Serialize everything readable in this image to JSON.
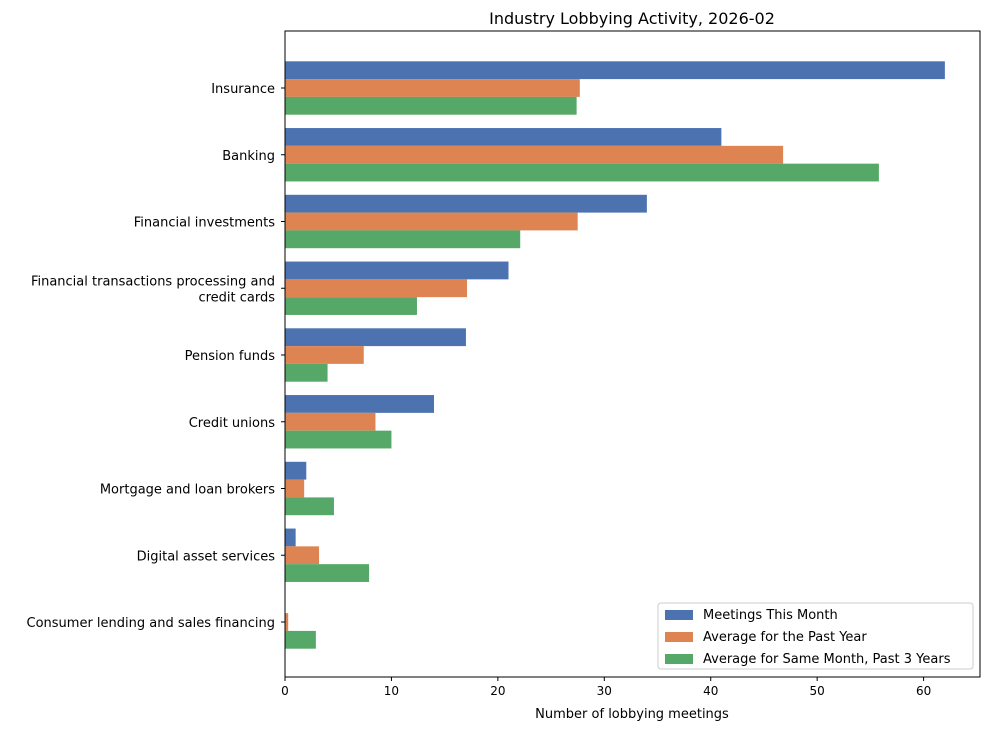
{
  "chart_data": {
    "type": "bar",
    "orientation": "horizontal",
    "title": "Industry Lobbying Activity, 2026-02",
    "xlabel": "Number of lobbying meetings",
    "ylabel": "",
    "xlim": [
      0,
      65.3
    ],
    "xticks": [
      0,
      10,
      20,
      30,
      40,
      50,
      60
    ],
    "grid": false,
    "legend_position": "bottom-right",
    "categories": [
      "Insurance",
      "Banking",
      "Financial investments",
      "Financial transactions processing and credit cards",
      "Pension funds",
      "Credit unions",
      "Mortgage and loan brokers",
      "Digital asset services",
      "Consumer lending and sales financing"
    ],
    "category_label_lines": [
      [
        "Insurance"
      ],
      [
        "Banking"
      ],
      [
        "Financial investments"
      ],
      [
        "Financial transactions processing and",
        "credit cards"
      ],
      [
        "Pension funds"
      ],
      [
        "Credit unions"
      ],
      [
        "Mortgage and loan brokers"
      ],
      [
        "Digital asset services"
      ],
      [
        "Consumer lending and sales financing"
      ]
    ],
    "series": [
      {
        "name": "Meetings This Month",
        "color": "#4c72b0",
        "values": [
          62,
          41,
          34,
          21,
          17,
          14,
          2,
          1,
          0
        ]
      },
      {
        "name": "Average for the Past Year",
        "color": "#dd8452",
        "values": [
          27.7,
          46.8,
          27.5,
          17.1,
          7.4,
          8.5,
          1.8,
          3.2,
          0.3
        ]
      },
      {
        "name": "Average for Same Month, Past 3 Years",
        "color": "#55a868",
        "values": [
          27.4,
          55.8,
          22.1,
          12.4,
          4.0,
          10.0,
          4.6,
          7.9,
          2.9
        ]
      }
    ]
  }
}
